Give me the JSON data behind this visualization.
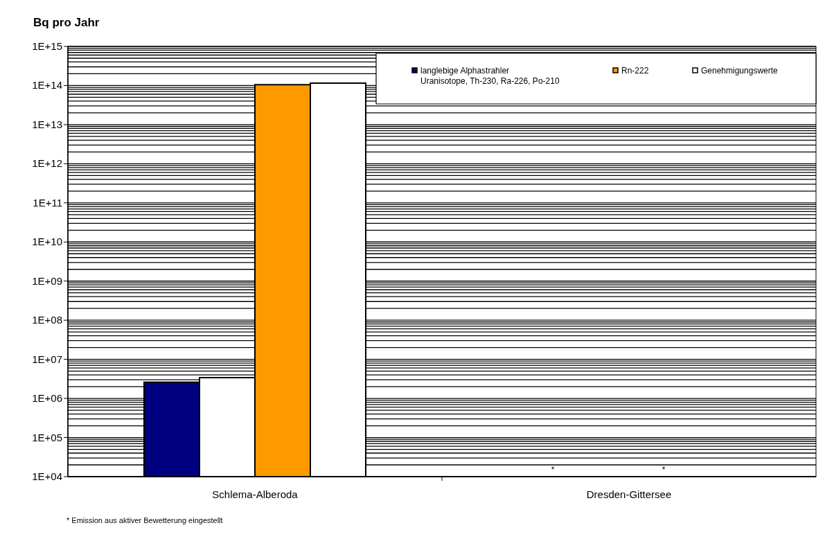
{
  "chart_data": {
    "type": "bar",
    "ylabel": "Bq pro Jahr",
    "categories": [
      "Schlema-Alberoda",
      "Dresden-Gittersee"
    ],
    "log": "y",
    "series": [
      {
        "name": "langlebige Alphastrahler\nUranisotope, Th-230, Ra-226, Po-210",
        "color": "#000080",
        "values": [
          2600000,
          null
        ],
        "value_labels": [
          null,
          "*"
        ]
      },
      {
        "color": "#ffffff",
        "values": [
          3400000,
          null
        ]
      },
      {
        "name": "Rn-222",
        "color": "#ff9900",
        "values": [
          105000000000000,
          null
        ],
        "value_labels": [
          null,
          "*"
        ]
      },
      {
        "name": "Genehmigungswerte",
        "color": "#ffffff",
        "values": [
          115000000000000,
          null
        ]
      }
    ],
    "ylim": [
      10000,
      1000000000000000
    ],
    "yticks": [
      {
        "value": 10000,
        "label": "1E+04"
      },
      {
        "value": 20000,
        "label": null
      },
      {
        "value": 30000,
        "label": null
      },
      {
        "value": 40000,
        "label": null
      },
      {
        "value": 50000,
        "label": null
      },
      {
        "value": 60000,
        "label": null
      },
      {
        "value": 70000,
        "label": null
      },
      {
        "value": 80000,
        "label": null
      },
      {
        "value": 90000,
        "label": null
      },
      {
        "value": 100000,
        "label": "1E+05"
      },
      {
        "value": 200000,
        "label": null
      },
      {
        "value": 300000,
        "label": null
      },
      {
        "value": 400000,
        "label": null
      },
      {
        "value": 500000,
        "label": null
      },
      {
        "value": 600000,
        "label": null
      },
      {
        "value": 700000,
        "label": null
      },
      {
        "value": 800000,
        "label": null
      },
      {
        "value": 900000,
        "label": null
      },
      {
        "value": 1000000,
        "label": "1E+06"
      },
      {
        "value": 2000000,
        "label": null
      },
      {
        "value": 3000000,
        "label": null
      },
      {
        "value": 4000000,
        "label": null
      },
      {
        "value": 5000000,
        "label": null
      },
      {
        "value": 6000000,
        "label": null
      },
      {
        "value": 7000000,
        "label": null
      },
      {
        "value": 8000000,
        "label": null
      },
      {
        "value": 9000000,
        "label": null
      },
      {
        "value": 10000000,
        "label": "1E+07"
      },
      {
        "value": 20000000,
        "label": null
      },
      {
        "value": 30000000,
        "label": null
      },
      {
        "value": 40000000,
        "label": null
      },
      {
        "value": 50000000,
        "label": null
      },
      {
        "value": 60000000,
        "label": null
      },
      {
        "value": 70000000,
        "label": null
      },
      {
        "value": 80000000,
        "label": null
      },
      {
        "value": 90000000,
        "label": null
      },
      {
        "value": 100000000,
        "label": "1E+08"
      },
      {
        "value": 200000000,
        "label": null
      },
      {
        "value": 300000000,
        "label": null
      },
      {
        "value": 400000000,
        "label": null
      },
      {
        "value": 500000000,
        "label": null
      },
      {
        "value": 600000000,
        "label": null
      },
      {
        "value": 700000000,
        "label": null
      },
      {
        "value": 800000000,
        "label": null
      },
      {
        "value": 900000000,
        "label": null
      },
      {
        "value": 1000000000,
        "label": "1E+09"
      },
      {
        "value": 2000000000,
        "label": null
      },
      {
        "value": 3000000000,
        "label": null
      },
      {
        "value": 4000000000,
        "label": null
      },
      {
        "value": 5000000000,
        "label": null
      },
      {
        "value": 6000000000,
        "label": null
      },
      {
        "value": 7000000000,
        "label": null
      },
      {
        "value": 8000000000,
        "label": null
      },
      {
        "value": 9000000000,
        "label": null
      },
      {
        "value": 10000000000,
        "label": "1E+10"
      },
      {
        "value": 20000000000,
        "label": null
      },
      {
        "value": 30000000000,
        "label": null
      },
      {
        "value": 40000000000,
        "label": null
      },
      {
        "value": 50000000000,
        "label": null
      },
      {
        "value": 60000000000,
        "label": null
      },
      {
        "value": 70000000000,
        "label": null
      },
      {
        "value": 80000000000,
        "label": null
      },
      {
        "value": 90000000000,
        "label": null
      },
      {
        "value": 100000000000,
        "label": "1E+11"
      },
      {
        "value": 200000000000,
        "label": null
      },
      {
        "value": 300000000000,
        "label": null
      },
      {
        "value": 400000000000,
        "label": null
      },
      {
        "value": 500000000000,
        "label": null
      },
      {
        "value": 600000000000,
        "label": null
      },
      {
        "value": 700000000000,
        "label": null
      },
      {
        "value": 800000000000,
        "label": null
      },
      {
        "value": 900000000000,
        "label": null
      },
      {
        "value": 1000000000000,
        "label": "1E+12"
      },
      {
        "value": 2000000000000,
        "label": null
      },
      {
        "value": 3000000000000,
        "label": null
      },
      {
        "value": 4000000000000,
        "label": null
      },
      {
        "value": 5000000000000,
        "label": null
      },
      {
        "value": 6000000000000,
        "label": null
      },
      {
        "value": 7000000000000,
        "label": null
      },
      {
        "value": 8000000000000,
        "label": null
      },
      {
        "value": 9000000000000,
        "label": null
      },
      {
        "value": 10000000000000,
        "label": "1E+13"
      },
      {
        "value": 20000000000000,
        "label": null
      },
      {
        "value": 30000000000000,
        "label": null
      },
      {
        "value": 40000000000000,
        "label": null
      },
      {
        "value": 50000000000000,
        "label": null
      },
      {
        "value": 60000000000000,
        "label": null
      },
      {
        "value": 70000000000000,
        "label": null
      },
      {
        "value": 80000000000000,
        "label": null
      },
      {
        "value": 90000000000000,
        "label": null
      },
      {
        "value": 100000000000000,
        "label": "1E+14"
      },
      {
        "value": 200000000000000,
        "label": null
      },
      {
        "value": 300000000000000,
        "label": null
      },
      {
        "value": 400000000000000,
        "label": null
      },
      {
        "value": 500000000000000,
        "label": null
      },
      {
        "value": 600000000000000,
        "label": null
      },
      {
        "value": 700000000000000,
        "label": null
      },
      {
        "value": 800000000000000,
        "label": null
      },
      {
        "value": 900000000000000,
        "label": null
      },
      {
        "value": 1000000000000000,
        "label": "1E+15"
      }
    ],
    "grid": "y",
    "legend": "top right",
    "annotations": [
      "* Emission aus aktiver Bewetterung eingestellt"
    ]
  }
}
